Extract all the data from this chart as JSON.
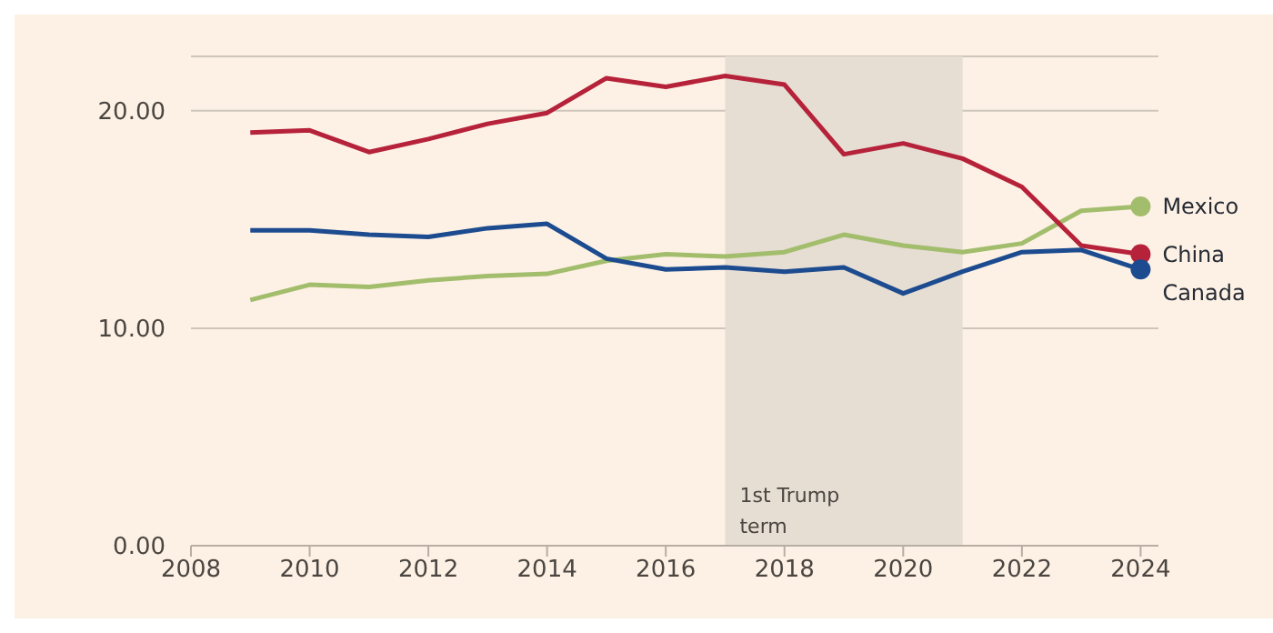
{
  "chart_data": {
    "type": "line",
    "x": [
      2009,
      2010,
      2011,
      2012,
      2013,
      2014,
      2015,
      2016,
      2017,
      2018,
      2019,
      2020,
      2021,
      2022,
      2023,
      2024
    ],
    "series": [
      {
        "name": "Mexico",
        "color": "#a2bd6b",
        "values": [
          11.3,
          12.0,
          11.9,
          12.2,
          12.4,
          12.5,
          13.1,
          13.4,
          13.3,
          13.5,
          14.3,
          13.8,
          13.5,
          13.9,
          15.4,
          15.6
        ]
      },
      {
        "name": "China",
        "color": "#b5223a",
        "values": [
          19.0,
          19.1,
          18.1,
          18.7,
          19.4,
          19.9,
          21.5,
          21.1,
          21.6,
          21.2,
          18.0,
          18.5,
          17.8,
          16.5,
          13.8,
          13.4
        ]
      },
      {
        "name": "Canada",
        "color": "#1c4b8f",
        "values": [
          14.5,
          14.5,
          14.3,
          14.2,
          14.6,
          14.8,
          13.2,
          12.7,
          12.8,
          12.6,
          12.8,
          11.6,
          12.6,
          13.5,
          13.6,
          12.7
        ]
      }
    ],
    "xlim": [
      2008,
      2024.3
    ],
    "xticks": [
      2008,
      2010,
      2012,
      2014,
      2016,
      2018,
      2020,
      2022,
      2024
    ],
    "ylim": [
      0,
      22.5
    ],
    "yticks": [
      {
        "value": 0,
        "label": "0.00"
      },
      {
        "value": 10,
        "label": "10.00"
      },
      {
        "value": 20,
        "label": "20.00"
      }
    ],
    "bands": [
      {
        "axis": "x",
        "from": 2017,
        "to": 2021,
        "label": "1st Trump term",
        "color": "#e6ddd3"
      }
    ],
    "grid": "y",
    "legend": false
  }
}
